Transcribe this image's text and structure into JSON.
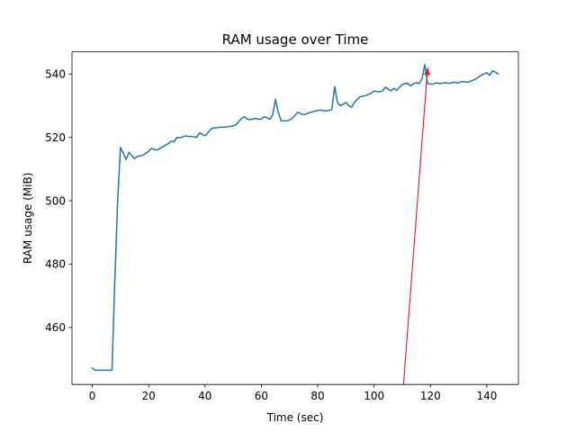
{
  "chart_data": {
    "type": "line",
    "title": "RAM usage over Time",
    "xlabel": "Time (sec)",
    "ylabel": "RAM usage (MiB)",
    "xlim": [
      -7.2,
      151.2
    ],
    "ylim": [
      442,
      547
    ],
    "xticks": [
      0,
      20,
      40,
      60,
      80,
      100,
      120,
      140
    ],
    "yticks": [
      460,
      480,
      500,
      520,
      540
    ],
    "grid": false,
    "series": [
      {
        "color": "#1f77b4",
        "x": [
          0,
          1,
          2,
          3,
          4,
          5,
          6,
          7,
          8,
          9,
          10,
          11,
          12,
          13,
          14,
          15,
          16,
          17,
          18,
          19,
          20,
          21,
          22,
          23,
          24,
          25,
          26,
          27,
          28,
          29,
          30,
          31,
          32,
          33,
          34,
          35,
          36,
          37,
          38,
          39,
          40,
          41,
          42,
          43,
          44,
          45,
          46,
          47,
          48,
          49,
          50,
          51,
          52,
          53,
          54,
          55,
          56,
          57,
          58,
          59,
          60,
          61,
          62,
          63,
          64,
          65,
          66,
          67,
          68,
          69,
          70,
          71,
          72,
          73,
          74,
          75,
          76,
          77,
          78,
          79,
          80,
          81,
          82,
          83,
          84,
          85,
          86,
          87,
          88,
          89,
          90,
          91,
          92,
          93,
          94,
          95,
          96,
          97,
          98,
          99,
          100,
          101,
          102,
          103,
          104,
          105,
          106,
          107,
          108,
          109,
          110,
          111,
          112,
          113,
          114,
          115,
          116,
          117,
          118,
          119,
          120,
          121,
          122,
          123,
          124,
          125,
          126,
          127,
          128,
          129,
          130,
          131,
          132,
          133,
          134,
          135,
          136,
          137,
          138,
          139,
          140,
          141,
          142,
          143,
          144
        ],
        "y": [
          447.2,
          446.5,
          446.5,
          446.5,
          446.5,
          446.5,
          446.5,
          446.5,
          475,
          500,
          516.8,
          515,
          513,
          515.3,
          514.3,
          513.3,
          514,
          514.2,
          514.4,
          515,
          515.6,
          516.5,
          516.2,
          516,
          516.5,
          517,
          517.6,
          518,
          518.8,
          518.6,
          520,
          519.9,
          520.1,
          520.5,
          520.3,
          520.3,
          520.2,
          520,
          521.4,
          521,
          520.5,
          521.5,
          522.5,
          523,
          523,
          523.2,
          523.2,
          523.2,
          523.4,
          523.5,
          523.7,
          524,
          525,
          526,
          526.5,
          525.8,
          525.6,
          525.8,
          526,
          525.7,
          525.8,
          526.5,
          526.2,
          525.7,
          527,
          532,
          528,
          525.3,
          525.2,
          525.2,
          525.5,
          526,
          527,
          528,
          527.4,
          527.2,
          527.4,
          527.8,
          528,
          528.3,
          528.5,
          528.6,
          528.4,
          528.4,
          528.5,
          528.8,
          536,
          531,
          530,
          530.5,
          531,
          530,
          529.5,
          531,
          532,
          532.8,
          533,
          533.2,
          533.6,
          534,
          534.6,
          534.5,
          534.4,
          534.7,
          535.8,
          535.2,
          534.7,
          535.5,
          534.8,
          535.8,
          536.7,
          537,
          537,
          536.2,
          537,
          537.2,
          537,
          538.5,
          543,
          537,
          536.8,
          536.8,
          537.2,
          537,
          537,
          537.3,
          537.1,
          537.1,
          537.4,
          537.3,
          537.2,
          537.6,
          537.6,
          537.4,
          537.6,
          538,
          538.4,
          539,
          539.6,
          540,
          540.4,
          539.6,
          541,
          540.6,
          540
        ]
      },
      {
        "color": "#e41a1c",
        "x": [
          110,
          119
        ],
        "y": [
          437,
          542
        ],
        "marker_end": "arrow"
      }
    ]
  }
}
